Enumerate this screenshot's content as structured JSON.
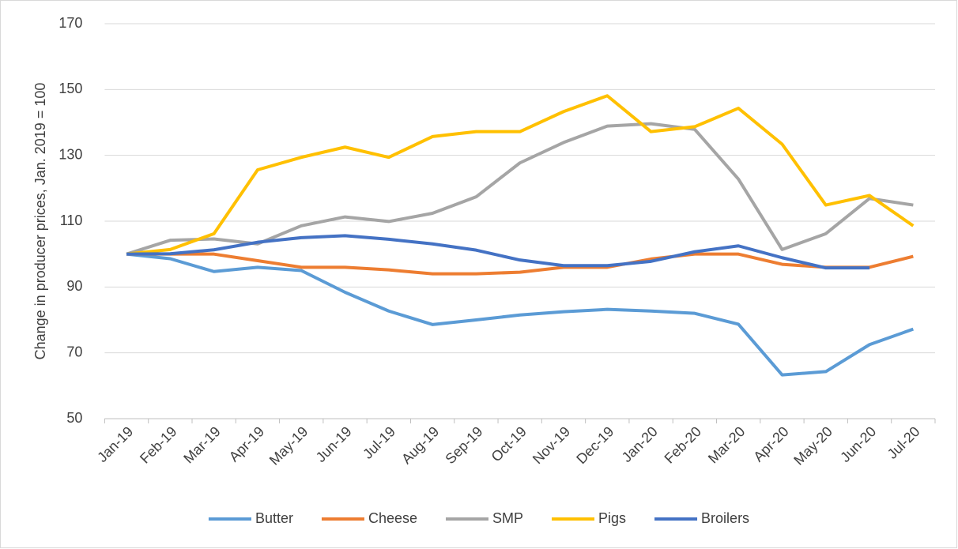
{
  "chart_data": {
    "type": "line",
    "y_label": "Change in producer prices, Jan. 2019 = 100",
    "categories": [
      "Jan-19",
      "Feb-19",
      "Mar-19",
      "Apr-19",
      "May-19",
      "Jun-19",
      "Jul-19",
      "Aug-19",
      "Sep-19",
      "Oct-19",
      "Nov-19",
      "Dec-19",
      "Jan-20",
      "Feb-20",
      "Mar-20",
      "Apr-20",
      "May-20",
      "Jun-20",
      "Jul-20"
    ],
    "series": [
      {
        "name": "Butter",
        "color": "#5b9bd5",
        "values": [
          100,
          98.6,
          94.7,
          96,
          95,
          88.4,
          82.7,
          78.6,
          80,
          81.5,
          82.5,
          83.2,
          82.7,
          82,
          78.7,
          63.3,
          64.3,
          72.5,
          77.2
        ]
      },
      {
        "name": "Cheese",
        "color": "#ed7d31",
        "values": [
          100,
          100,
          100,
          98,
          96,
          96,
          95.2,
          94,
          94,
          94.5,
          96,
          96,
          98.5,
          100,
          100,
          96.9,
          96,
          96,
          99.3
        ]
      },
      {
        "name": "SMP",
        "color": "#a5a5a5",
        "values": [
          100,
          104.2,
          104.6,
          103.1,
          108.6,
          111.3,
          109.9,
          112.4,
          117.4,
          127.7,
          133.9,
          138.9,
          139.6,
          137.9,
          122.8,
          101.4,
          106.2,
          116.9,
          114.9
        ]
      },
      {
        "name": "Pigs",
        "color": "#ffc000",
        "values": [
          100,
          101.4,
          106.2,
          125.6,
          129.4,
          132.5,
          129.4,
          135.7,
          137.2,
          137.2,
          143.3,
          148.1,
          137.2,
          138.7,
          144.3,
          133.4,
          114.9,
          117.8,
          108.6
        ]
      },
      {
        "name": "Broilers",
        "color": "#4472c4",
        "values": [
          100,
          100.1,
          101.3,
          103.6,
          105,
          105.6,
          104.5,
          103.1,
          101.2,
          98.2,
          96.5,
          96.5,
          97.8,
          100.7,
          102.5,
          98.9,
          95.8,
          95.8,
          null
        ]
      }
    ],
    "ylim": [
      50,
      170
    ],
    "yticks": [
      50,
      70,
      90,
      110,
      130,
      150,
      170
    ],
    "grid": true,
    "legend": "bottom"
  }
}
